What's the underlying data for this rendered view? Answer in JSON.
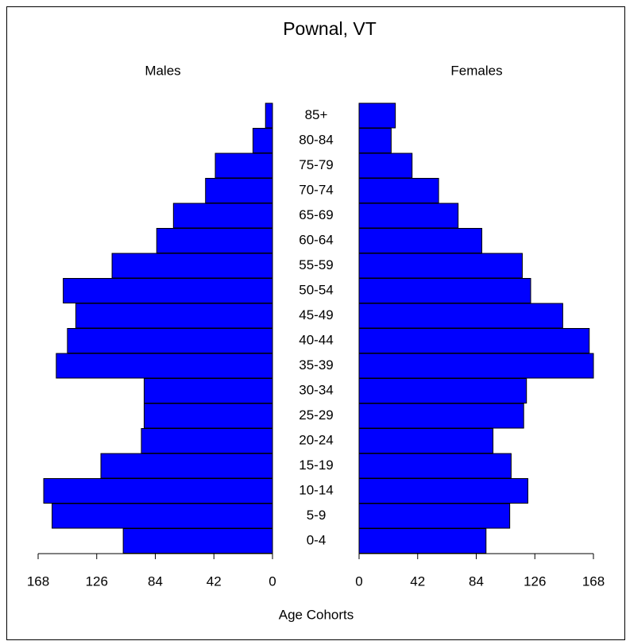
{
  "chart_data": {
    "type": "pyramid",
    "title": "Pownal, VT",
    "x_label": "Age Cohorts",
    "categories": [
      "0-4",
      "5-9",
      "10-14",
      "15-19",
      "20-24",
      "25-29",
      "30-34",
      "35-39",
      "40-44",
      "45-49",
      "50-54",
      "55-59",
      "60-64",
      "65-69",
      "70-74",
      "75-79",
      "80-84",
      "85+"
    ],
    "series": [
      {
        "name": "Males",
        "color": "#0000ff",
        "values": [
          107,
          158,
          164,
          123,
          94,
          92,
          92,
          155,
          147,
          141,
          150,
          115,
          83,
          71,
          48,
          41,
          14,
          5
        ]
      },
      {
        "name": "Females",
        "color": "#0000ff",
        "values": [
          91,
          108,
          121,
          109,
          96,
          118,
          120,
          168,
          165,
          146,
          123,
          117,
          88,
          71,
          57,
          38,
          23,
          26
        ]
      }
    ],
    "xlim": [
      0,
      168
    ],
    "xticks": [
      0,
      42,
      84,
      126,
      168
    ]
  }
}
